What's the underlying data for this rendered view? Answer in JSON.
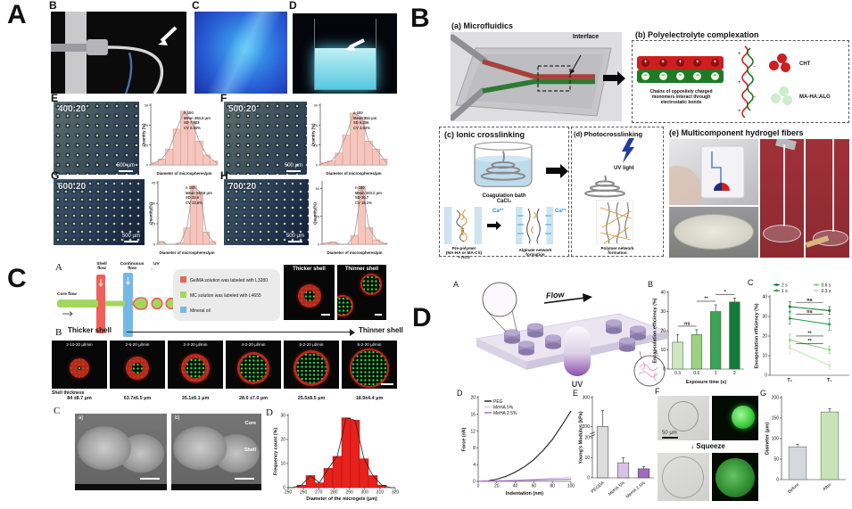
{
  "panels": {
    "A": {
      "label": "A",
      "photo_labels": [
        "B",
        "C",
        "D"
      ],
      "units": [
        {
          "label": "E",
          "ratio": "400:20",
          "scalebar": "500 μm",
          "stats": "n 100\nMean 394.5 μm\nSD 7.533\nCV 2.04%"
        },
        {
          "label": "F",
          "ratio": "500:20",
          "scalebar": "500 μm",
          "stats": "n 100\nMean 354 μm\nSD 9.236\nCV 3.64%"
        },
        {
          "label": "G",
          "ratio": "600:20",
          "scalebar": "500 μm",
          "stats": "n 100\nMean 242.9 μm\nSD 33.6\nCV 13.6%"
        },
        {
          "label": "H",
          "ratio": "700:20",
          "scalebar": "500 μm",
          "stats": "n 100\nMean 203.2 μm\nSD 30.7\nCV 15.1%"
        }
      ]
    },
    "B": {
      "label": "B",
      "a": {
        "title": "(a) Microfluidics",
        "interface": "Interface"
      },
      "b": {
        "title": "(b) Polyelectrolyte complexation",
        "caption": "Chains of oppositely charged monomers interact through electrostatic bonds",
        "legend": [
          {
            "name": "CHT"
          },
          {
            "name": "MA-HA:ALG"
          }
        ]
      },
      "c": {
        "title": "(c) Ionic crosslinking",
        "bath": "Coagulation bath\nCaCl₂",
        "prepolymer": "Pre-polymer\n(MA-HA or MA-CS)\n+ ALG",
        "ion": "Ca²⁺",
        "network": "Alginate network\nformation"
      },
      "d": {
        "title": "(d) Photocrosslinking",
        "uv": "UV light",
        "network": "Polymer network\nformation"
      },
      "e": {
        "title": "(e) Multicomponent hydrogel fibers"
      }
    },
    "C": {
      "label": "C",
      "a": {
        "label": "A",
        "shell_flow": "Shell\nflow",
        "continuous_flow": "Continuous\nflow",
        "uv": "UV",
        "core_flow": "Core flow",
        "legend": [
          {
            "text": "GelMA solution was labeled with L3280"
          },
          {
            "text": "MC solution was labeled with L4655"
          },
          {
            "text": "Mineral oil"
          }
        ],
        "thicker": "Thicker shell",
        "thinner": "Thinner shell"
      },
      "b": {
        "label": "B",
        "left": "Thicker shell",
        "right": "Thinner shell",
        "thickness_title": "Shell thickness",
        "items": [
          {
            "rate": "2-10-20 μl/min",
            "thickness": "84 ±8.7 μm"
          },
          {
            "rate": "2-6-20 μl/min",
            "thickness": "63.7±6.5 μm"
          },
          {
            "rate": "2-2-20 μl/min",
            "thickness": "35.1±6.1 μm"
          },
          {
            "rate": "4-2-20 μl/min",
            "thickness": "28.0 ±7.0 μm"
          },
          {
            "rate": "5-2-20 μl/min",
            "thickness": "25.5±8.5 μm"
          },
          {
            "rate": "6-2-20 μl/min",
            "thickness": "18.9±4.4 μm"
          }
        ]
      },
      "c": {
        "label": "C",
        "a_sub": "a)",
        "b_sub": "b)",
        "core": "Core",
        "shell": "Shell"
      },
      "d": {
        "label": "D"
      }
    },
    "D": {
      "label": "D",
      "a": {
        "label": "A",
        "flow": "Flow",
        "uv": "UV"
      },
      "b": {
        "label": "B"
      },
      "c": {
        "label": "C"
      },
      "d": {
        "label": "D"
      },
      "e": {
        "label": "E"
      },
      "f": {
        "label": "F",
        "scalebar": "50 μm",
        "squeeze": "Squeeze"
      },
      "g": {
        "label": "G"
      }
    }
  },
  "chart_data": [
    {
      "id": "a-hist-e",
      "type": "bar",
      "hist": true,
      "values": [
        1,
        3,
        8,
        18,
        27,
        22,
        12,
        5,
        2
      ],
      "ylim": [
        0,
        30
      ],
      "yticks": [
        0,
        10,
        20,
        30
      ],
      "color": "#f5c6bd",
      "stroke": "#d98c80",
      "curve": true,
      "curve_color": "#999999",
      "xlabel": "Diameter of microspheres/μm",
      "ylabel": "Quantity (%)"
    },
    {
      "id": "a-hist-f",
      "type": "bar",
      "hist": true,
      "values": [
        1,
        2,
        6,
        15,
        26,
        24,
        12,
        8,
        3
      ],
      "ylim": [
        0,
        30
      ],
      "yticks": [
        0,
        10,
        20,
        30
      ],
      "color": "#f5c6bd",
      "stroke": "#d98c80",
      "curve": true,
      "curve_color": "#999999",
      "xlabel": "Diameter of microspheres/μm",
      "ylabel": "Quantity (%)"
    },
    {
      "id": "a-hist-g",
      "type": "bar",
      "hist": true,
      "values": [
        2,
        0,
        0,
        1,
        12,
        43,
        38,
        9,
        2
      ],
      "ylim": [
        0,
        45
      ],
      "yticks": [
        0,
        15,
        30,
        45
      ],
      "color": "#f5c6bd",
      "stroke": "#d98c80",
      "curve": true,
      "curve_color": "#999999",
      "xlabel": "Diameter of microspheres/μm",
      "ylabel": "Quantity(%)"
    },
    {
      "id": "a-hist-h",
      "type": "bar",
      "hist": true,
      "values": [
        1,
        2,
        0,
        0,
        8,
        52,
        15,
        4,
        1
      ],
      "ylim": [
        0,
        55
      ],
      "yticks": [
        0,
        25,
        50
      ],
      "color": "#f5c6bd",
      "stroke": "#d98c80",
      "curve": true,
      "curve_color": "#999999",
      "xlabel": "Diameter of microspheres/μm",
      "ylabel": "Quantity(%)"
    },
    {
      "id": "c-hist",
      "type": "bar",
      "hist": true,
      "values": [
        0,
        1,
        5,
        2,
        8,
        13,
        29,
        28,
        12,
        5,
        1,
        0
      ],
      "ylim": [
        0,
        30
      ],
      "yticks": [
        0,
        10,
        20,
        30
      ],
      "xlim": [
        250,
        320
      ],
      "xticks": [
        250,
        260,
        270,
        280,
        290,
        300,
        310,
        320
      ],
      "color": "#e8211d",
      "stroke": "#9e1310",
      "curve": true,
      "curve_color": "#222222",
      "xlabel": "Diameter of the microgels (μm)",
      "ylabel": "Frequency count (%)"
    },
    {
      "id": "d-encap-bar",
      "type": "bar",
      "categories": [
        "0.3",
        "0.6",
        "1",
        "2"
      ],
      "values": [
        14,
        18,
        30,
        35
      ],
      "errors": [
        4,
        2.5,
        3.5,
        2
      ],
      "colors": [
        "#cfe6c0",
        "#9ed184",
        "#3da254",
        "#157a3b"
      ],
      "stroke": "#2a5c33",
      "ylim": [
        0,
        40
      ],
      "yticks": [
        0,
        10,
        20,
        30,
        40
      ],
      "sig": [
        "ns",
        "**",
        "*"
      ],
      "xlabel": "Exposure time (s)",
      "ylabel": "Encapsulation efficiency (%)"
    },
    {
      "id": "d-encap-line",
      "type": "line",
      "categories": [
        "T₀",
        "T₁"
      ],
      "markers": true,
      "legend": "top",
      "legend_order": [
        0,
        2,
        1,
        3
      ],
      "series": [
        {
          "name": "2 s",
          "color": "#157a3b",
          "values": [
            35,
            33
          ],
          "err": [
            2.5,
            2
          ]
        },
        {
          "name": "1 s",
          "color": "#2f9e50",
          "values": [
            29,
            26
          ],
          "err": [
            3,
            3
          ]
        },
        {
          "name": "0.6 s",
          "color": "#8fd08a",
          "values": [
            18,
            13
          ],
          "err": [
            3,
            2
          ]
        },
        {
          "name": "0.3 s",
          "color": "#c9e6bb",
          "values": [
            14,
            5
          ],
          "err": [
            3,
            2
          ]
        }
      ],
      "sig": [
        "ns",
        "ns",
        "**",
        "**"
      ],
      "ylim": [
        0,
        40
      ],
      "yticks": [
        0,
        10,
        20,
        30,
        40
      ],
      "ylabel": "Encapsulation efficiency (%)"
    },
    {
      "id": "d-force",
      "type": "line",
      "x": [
        0,
        10,
        20,
        30,
        40,
        50,
        60,
        70,
        80,
        90,
        100
      ],
      "xlim": [
        0,
        100
      ],
      "xticks": [
        0,
        20,
        40,
        60,
        80,
        100
      ],
      "ylim": [
        0,
        20
      ],
      "yticks": [
        0,
        4,
        8,
        12,
        16,
        20
      ],
      "legend": "inset",
      "series": [
        {
          "name": "PEG",
          "color": "#1a1a1a",
          "values": [
            0,
            0.1,
            0.5,
            1.2,
            2.2,
            3.5,
            5.2,
            7.4,
            10,
            13.3,
            16.8
          ]
        },
        {
          "name": "MeHA 5%",
          "color": "#d8c6ea",
          "values": [
            0,
            0.05,
            0.12,
            0.2,
            0.28,
            0.38,
            0.5,
            0.62,
            0.75,
            0.85,
            1
          ]
        },
        {
          "name": "MeHA 2.5%",
          "color": "#9a6cc0",
          "values": [
            0,
            0.03,
            0.07,
            0.12,
            0.18,
            0.24,
            0.3,
            0.36,
            0.42,
            0.47,
            0.5
          ]
        }
      ],
      "xlabel": "Indentation (nm)",
      "ylabel": "Force (nN)"
    },
    {
      "id": "d-modulus",
      "type": "bar",
      "categories": [
        "PEGDA",
        "MeHA 5%",
        "MeHA 2.5%"
      ],
      "values": [
        200,
        7.5,
        4.5
      ],
      "errors": [
        55,
        2.5,
        1
      ],
      "colors": [
        "#dcdcdc",
        "#d9c2e8",
        "#a468c0"
      ],
      "stroke": "#333333",
      "rotate": true,
      "ybreak": {
        "low": [
          0,
          20
        ],
        "high": [
          200,
          300
        ],
        "highTicks": [
          200,
          300
        ]
      },
      "yticks": [
        0,
        10,
        20
      ],
      "ylabel": "Young's Modulus (kPa)"
    },
    {
      "id": "d-diameter",
      "type": "bar",
      "categories": [
        "Before",
        "After"
      ],
      "values": [
        80,
        165
      ],
      "errors": [
        6,
        8
      ],
      "colors": [
        "#d4d9dc",
        "#c8e3b8"
      ],
      "stroke": "#555555",
      "rotate": true,
      "ylim": [
        0,
        200
      ],
      "yticks": [
        0,
        50,
        100,
        150,
        200
      ],
      "ylabel": "Diameter (μm)"
    }
  ]
}
